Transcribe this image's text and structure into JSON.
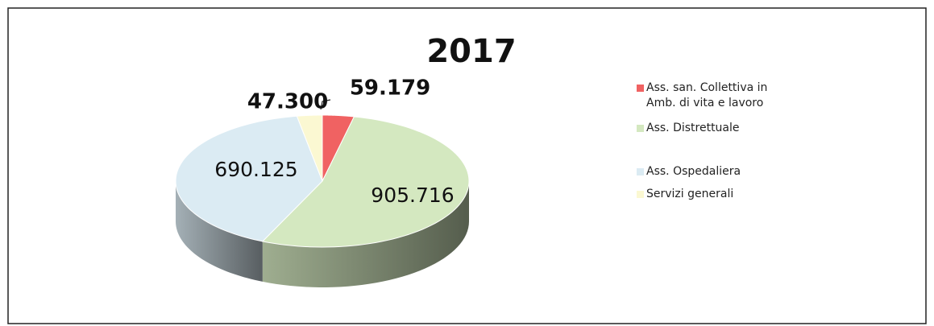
{
  "chart_data": {
    "type": "pie",
    "title": "2017",
    "categories": [
      "Ass. san. Collettiva in Amb. di vita e lavoro",
      "Ass. Distrettuale",
      "Ass. Ospedaliera",
      "Servizi generali"
    ],
    "values": [
      59179,
      905716,
      690125,
      47300
    ],
    "value_labels": [
      "59.179",
      "905.716",
      "690.125",
      "47.300"
    ],
    "colors": [
      "#f06262",
      "#d4e8c0",
      "#dbebf3",
      "#fbf8d2"
    ],
    "legend": "right"
  }
}
